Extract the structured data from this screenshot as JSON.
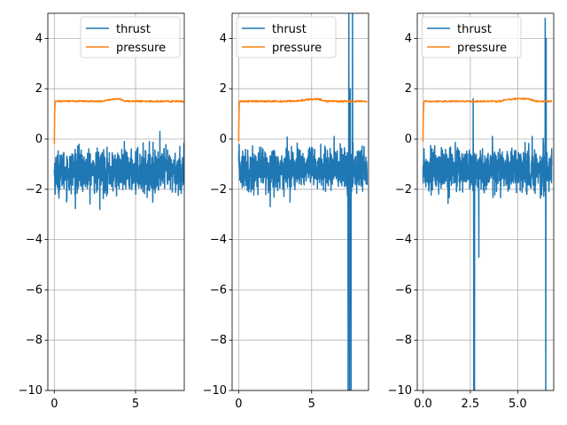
{
  "chart_data": [
    {
      "type": "line",
      "title": "",
      "xlabel": "",
      "ylabel": "",
      "xlim": [
        -0.4,
        8.0
      ],
      "ylim": [
        -10,
        5
      ],
      "xticks": [
        0,
        5
      ],
      "xtick_labels": [
        "0",
        "5"
      ],
      "yticks": [
        -10,
        -8,
        -6,
        -4,
        -2,
        0,
        2,
        4
      ],
      "ytick_labels": [
        "−10",
        "−8",
        "−6",
        "−4",
        "−2",
        "0",
        "2",
        "4"
      ],
      "grid": true,
      "legend_position": "top-right",
      "series": [
        {
          "name": "thrust",
          "color": "#1f77b4",
          "x_range": [
            0,
            8.0
          ],
          "noise_band": [
            -2.5,
            -0.4
          ],
          "mean": -1.3,
          "spikes": [
            {
              "x": 2.8,
              "y": -2.8
            },
            {
              "x": 6.5,
              "y": 0.3
            }
          ]
        },
        {
          "name": "pressure",
          "color": "#ff7f0e",
          "x": [
            0.0,
            0.02,
            0.05,
            1.0,
            2.0,
            3.0,
            3.5,
            4.0,
            4.3,
            5.0,
            6.0,
            7.0,
            8.0
          ],
          "y": [
            -0.2,
            1.0,
            1.5,
            1.5,
            1.5,
            1.5,
            1.58,
            1.6,
            1.5,
            1.5,
            1.5,
            1.5,
            1.5
          ]
        }
      ]
    },
    {
      "type": "line",
      "title": "",
      "xlabel": "",
      "ylabel": "",
      "xlim": [
        -0.45,
        8.9
      ],
      "ylim": [
        -10,
        5
      ],
      "xticks": [
        0,
        5
      ],
      "xtick_labels": [
        "0",
        "5"
      ],
      "yticks": [
        -10,
        -8,
        -6,
        -4,
        -2,
        0,
        2,
        4
      ],
      "ytick_labels": [
        "−10",
        "−8",
        "−6",
        "−4",
        "−2",
        "0",
        "2",
        "4"
      ],
      "grid": true,
      "legend_position": "top-left",
      "series": [
        {
          "name": "thrust",
          "color": "#1f77b4",
          "x_range": [
            0,
            8.8
          ],
          "noise_band": [
            -2.4,
            -0.2
          ],
          "mean": -1.2,
          "spikes": [
            {
              "x": 7.5,
              "y": -10
            },
            {
              "x": 7.55,
              "y": 5
            },
            {
              "x": 7.6,
              "y": -10
            },
            {
              "x": 7.65,
              "y": 2
            },
            {
              "x": 7.7,
              "y": -10
            },
            {
              "x": 7.8,
              "y": 5
            }
          ]
        },
        {
          "name": "pressure",
          "color": "#ff7f0e",
          "x": [
            0.0,
            0.02,
            0.05,
            1.0,
            2.0,
            3.0,
            4.0,
            5.0,
            5.4,
            6.0,
            7.0,
            8.0,
            8.8
          ],
          "y": [
            -0.1,
            1.0,
            1.5,
            1.5,
            1.5,
            1.5,
            1.52,
            1.58,
            1.6,
            1.5,
            1.5,
            1.5,
            1.5
          ]
        }
      ]
    },
    {
      "type": "line",
      "title": "",
      "xlabel": "",
      "ylabel": "",
      "xlim": [
        -0.3,
        6.9
      ],
      "ylim": [
        -10,
        5
      ],
      "xticks": [
        0.0,
        2.5,
        5.0
      ],
      "xtick_labels": [
        "0.0",
        "2.5",
        "5.0"
      ],
      "yticks": [
        -10,
        -8,
        -6,
        -4,
        -2,
        0,
        2,
        4
      ],
      "ytick_labels": [
        "−10",
        "−8",
        "−6",
        "−4",
        "−2",
        "0",
        "2",
        "4"
      ],
      "grid": true,
      "legend_position": "top-left",
      "series": [
        {
          "name": "thrust",
          "color": "#1f77b4",
          "x_range": [
            0,
            6.8
          ],
          "noise_band": [
            -2.4,
            -0.2
          ],
          "mean": -1.2,
          "spikes": [
            {
              "x": 2.65,
              "y": 1.6
            },
            {
              "x": 2.68,
              "y": -10
            },
            {
              "x": 2.72,
              "y": -10
            },
            {
              "x": 2.95,
              "y": -4.7
            },
            {
              "x": 6.45,
              "y": 4.8
            },
            {
              "x": 6.48,
              "y": -10
            },
            {
              "x": 6.5,
              "y": 4.0
            }
          ]
        },
        {
          "name": "pressure",
          "color": "#ff7f0e",
          "x": [
            0.0,
            0.02,
            0.05,
            1.0,
            2.0,
            3.0,
            4.0,
            4.5,
            5.0,
            5.5,
            6.0,
            6.8
          ],
          "y": [
            -0.1,
            1.0,
            1.5,
            1.5,
            1.5,
            1.5,
            1.5,
            1.58,
            1.6,
            1.6,
            1.5,
            1.5
          ]
        }
      ]
    }
  ]
}
